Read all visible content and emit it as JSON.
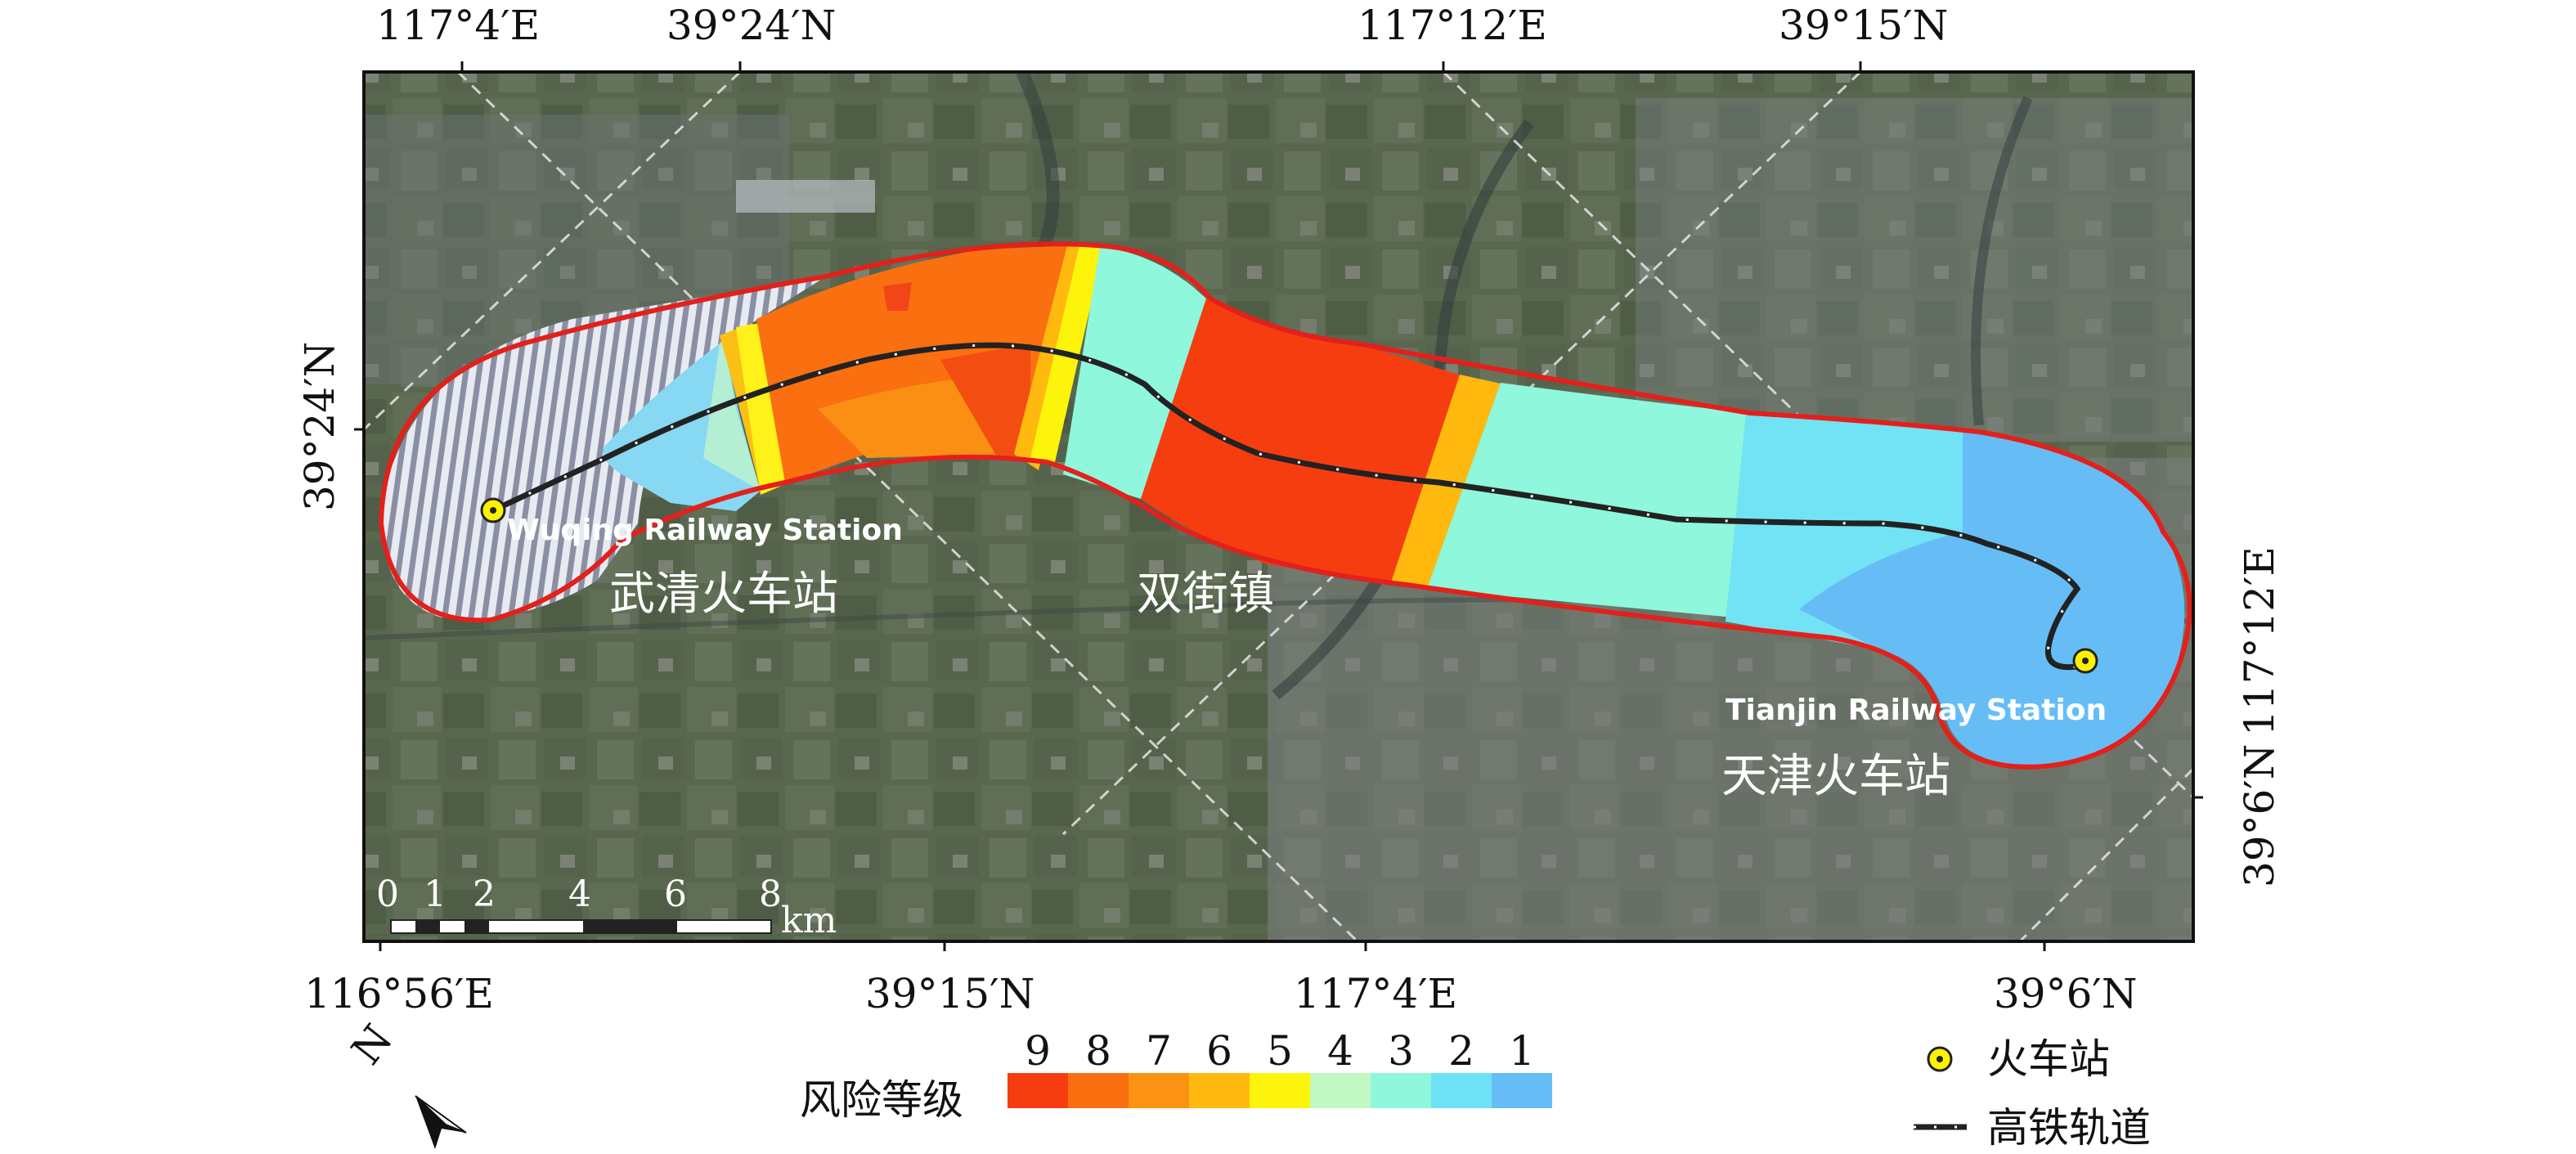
{
  "map": {
    "top_labels": [
      "117°4′E",
      "39°24′N",
      "117°12′E",
      "39°15′N"
    ],
    "bottom_labels": [
      "116°56′E",
      "39°15′N",
      "117°4′E",
      "39°6′N"
    ],
    "left_label": "39°24′N",
    "right_label_top": "117°12′E",
    "right_label_bottom": "39°6′N",
    "place_labels": {
      "wuqing_en": "Wuqing Railway Station",
      "wuqing_zh": "武清火车站",
      "shuangjie_zh": "双街镇",
      "tianjin_en": "Tianjin Railway Station",
      "tianjin_zh": "天津火车站"
    },
    "scale_bar": {
      "ticks": [
        "0",
        "1",
        "2",
        "4",
        "6",
        "8"
      ],
      "unit": "km"
    },
    "north_arrow": {
      "label": "N",
      "icon": "north-arrow-icon"
    }
  },
  "risk_legend": {
    "title": "风险等级",
    "levels": [
      "9",
      "8",
      "7",
      "6",
      "5",
      "4",
      "3",
      "2",
      "1"
    ],
    "colors": [
      "#f63d10",
      "#f96f10",
      "#fb9211",
      "#ffb90f",
      "#fdf40b",
      "#c1f8c3",
      "#8ef7dc",
      "#6fe1f4",
      "#66bdf6"
    ]
  },
  "symbol_legend": {
    "station": "火车站",
    "railway": "高铁轨道",
    "station_color": "#fff200",
    "boundary_color": "#e3201b"
  }
}
